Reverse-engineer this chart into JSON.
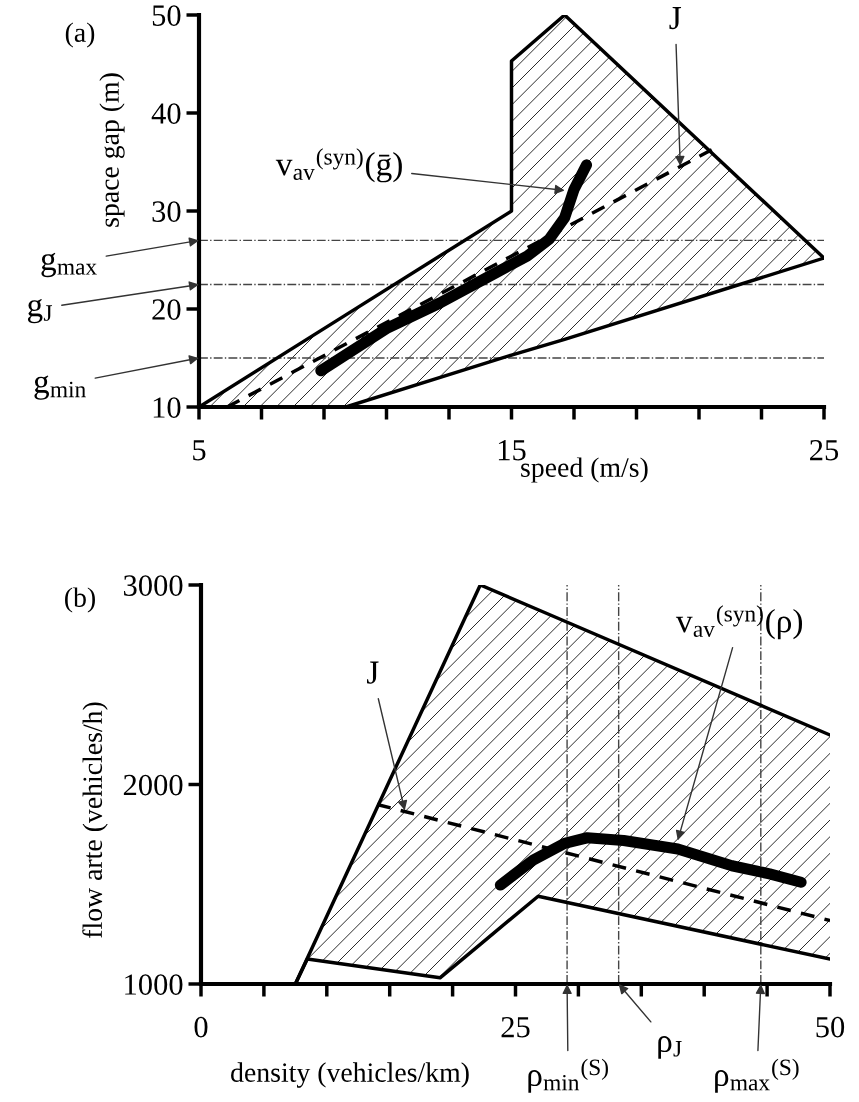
{
  "chart_data": [
    {
      "type": "line",
      "title": "(a)",
      "xlabel": "speed (m/s)",
      "ylabel": "space gap (m)",
      "xlim": [
        5,
        25
      ],
      "ylim": [
        10,
        50
      ],
      "xticks": [
        5,
        {
          "value": 7,
          "label": null
        },
        {
          "value": 9,
          "label": null
        },
        {
          "value": 11,
          "label": null
        },
        {
          "value": 13,
          "label": null
        },
        15,
        {
          "value": 17,
          "label": null
        },
        {
          "value": 19,
          "label": null
        },
        {
          "value": 21,
          "label": null
        },
        {
          "value": 23,
          "label": null
        },
        25
      ],
      "yticks": [
        10,
        20,
        30,
        40,
        50
      ],
      "grid": false,
      "legend": false,
      "series": [
        {
          "type": "area",
          "color": "#000000",
          "x": [
            5,
            9.7,
            15,
            15,
            16.7,
            25
          ],
          "values": [
            10,
            19.4,
            30,
            45.3,
            50,
            25.2
          ]
        },
        {
          "color": "#000000",
          "x": [
            5,
            9.7,
            15,
            15,
            16.7,
            25
          ],
          "values": [
            10,
            10,
            15.3,
            15.3,
            16.9,
            25.2
          ]
        },
        {
          "color": "#000000",
          "line_style": "dashed",
          "x": [
            5.9,
            21.5
          ],
          "values": [
            10,
            36.4
          ]
        },
        {
          "color": "#000000",
          "x": [
            8.9,
            11.0,
            12.7,
            14.5,
            15.5,
            16.2,
            16.7,
            17.0,
            17.4
          ],
          "values": [
            13.7,
            18.0,
            20.6,
            23.7,
            25.4,
            27.1,
            29.3,
            32.2,
            34.7
          ]
        }
      ],
      "ref_lines": [
        {
          "axis": "y",
          "value": 27,
          "color": "#444444",
          "line_style": "dashdot"
        },
        {
          "axis": "y",
          "value": 22.5,
          "color": "#444444",
          "line_style": "dashdot"
        },
        {
          "axis": "y",
          "value": 15,
          "color": "#444444",
          "line_style": "dashdot"
        }
      ],
      "annotations": [
        {
          "text": "g$_{max}$",
          "x": 5,
          "y": 27
        },
        {
          "text": "g$_{J}$",
          "x": 5,
          "y": 22.5
        },
        {
          "text": "g$_{min}$",
          "x": 5,
          "y": 15
        },
        {
          "text": "J",
          "x": 20.4,
          "y": 34.6
        },
        {
          "text": "v$_{av}$$^{(syn)}$(ḡ)",
          "x": 16.7,
          "y": 32.1
        }
      ]
    },
    {
      "type": "line",
      "title": "(b)",
      "xlabel": "density (vehicles/km)",
      "ylabel": "flow arte (vehicles/h)",
      "xlim": [
        0,
        50
      ],
      "ylim": [
        1000,
        3000
      ],
      "xticks": [
        0,
        {
          "value": 5,
          "label": null
        },
        {
          "value": 10,
          "label": null
        },
        {
          "value": 15,
          "label": null
        },
        {
          "value": 20,
          "label": null
        },
        25,
        {
          "value": 30,
          "label": null
        },
        {
          "value": 35,
          "label": null
        },
        {
          "value": 40,
          "label": null
        },
        {
          "value": 45,
          "label": null
        },
        50
      ],
      "yticks": [
        1000,
        2000,
        3000
      ],
      "grid": false,
      "legend": false,
      "series": [
        {
          "type": "area",
          "color": "#000000",
          "x": [
            7.5,
            8.45,
            19.0,
            22.2,
            26.8,
            50
          ],
          "values": [
            1000,
            1129,
            2565,
            3000,
            2876,
            2248
          ]
        },
        {
          "color": "#000000",
          "x": [
            7.5,
            8.45,
            19.0,
            22.2,
            26.8,
            50
          ],
          "values": [
            1000,
            1125,
            1031,
            1199,
            1440,
            1125
          ]
        },
        {
          "color": "#000000",
          "line_style": "dashed",
          "x": [
            14.0,
            50
          ],
          "values": [
            1900,
            1318
          ]
        },
        {
          "color": "#000000",
          "x": [
            23.8,
            26.4,
            28.9,
            30.7,
            33.6,
            37.9,
            42.2,
            45.2,
            47.7
          ],
          "values": [
            1496,
            1621,
            1705,
            1733,
            1719,
            1677,
            1593,
            1552,
            1510
          ]
        }
      ],
      "ref_lines": [
        {
          "axis": "x",
          "value": 29.1,
          "color": "#444444",
          "line_style": "dashdot"
        },
        {
          "axis": "x",
          "value": 33.2,
          "color": "#444444",
          "line_style": "dashdot"
        },
        {
          "axis": "x",
          "value": 44.5,
          "color": "#444444",
          "line_style": "dashdot"
        }
      ],
      "annotations": [
        {
          "text": "J",
          "x": 16.2,
          "y": 1870
        },
        {
          "text": "v$_{av}$$^{(syn)}$(ρ)",
          "x": 37.9,
          "y": 1720
        },
        {
          "text": "ρ$_{min}$$^{(S)}$",
          "x": 29.1,
          "y": 1000
        },
        {
          "text": "ρ$_{J}$",
          "x": 33.2,
          "y": 1000
        },
        {
          "text": "ρ$_{max}$$^{(S)}$",
          "x": 44.5,
          "y": 1000
        }
      ]
    }
  ]
}
